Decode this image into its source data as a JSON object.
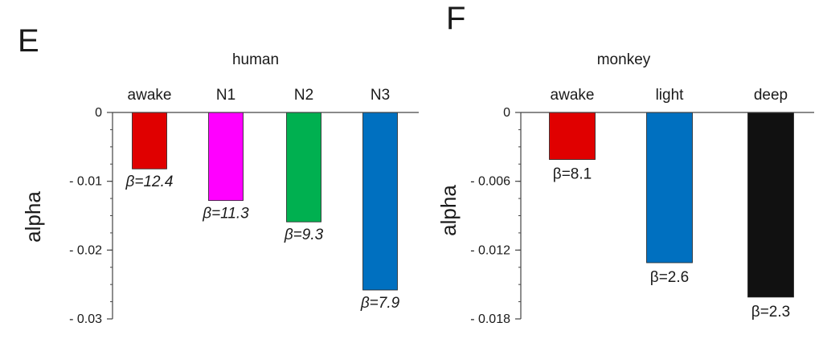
{
  "colors": {
    "red": "#e00000",
    "magenta": "#ff00ff",
    "green": "#00b050",
    "blue": "#0070c0",
    "black": "#111111",
    "axis": "#444444"
  },
  "chart_data": [
    {
      "panel": "E",
      "type": "bar",
      "title": "human",
      "ylabel": "alpha",
      "xlabel": "",
      "ylim": [
        -0.03,
        0
      ],
      "yticks": [
        0,
        -0.01,
        -0.02,
        -0.03
      ],
      "ytick_labels": [
        "0",
        "- 0.01",
        "- 0.02",
        "- 0.03"
      ],
      "y_minor_step": 0.0025,
      "categories": [
        "awake",
        "N1",
        "N2",
        "N3"
      ],
      "values": [
        -0.0082,
        -0.0128,
        -0.0159,
        -0.0258
      ],
      "bar_colors": [
        "red",
        "magenta",
        "green",
        "blue"
      ],
      "annotations": [
        "β=12.4",
        "β=11.3",
        "β=9.3",
        "β=7.9"
      ],
      "annotation_style": "italic",
      "grid": false,
      "legend": "none"
    },
    {
      "panel": "F",
      "type": "bar",
      "title": "monkey",
      "ylabel": "alpha",
      "xlabel": "",
      "ylim": [
        -0.018,
        0
      ],
      "yticks": [
        0,
        -0.006,
        -0.012,
        -0.018
      ],
      "ytick_labels": [
        "0",
        "- 0.006",
        "- 0.012",
        "- 0.018"
      ],
      "y_minor_step": 0.0015,
      "categories": [
        "awake",
        "light",
        "deep"
      ],
      "values": [
        -0.0041,
        -0.0131,
        -0.0161
      ],
      "bar_colors": [
        "red",
        "blue",
        "black"
      ],
      "annotations": [
        "β=8.1",
        "β=2.6",
        "β=2.3"
      ],
      "annotation_style": "normal",
      "grid": false,
      "legend": "none"
    }
  ]
}
